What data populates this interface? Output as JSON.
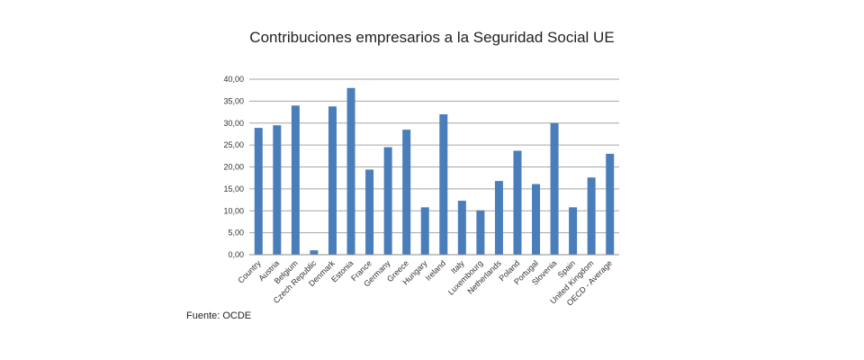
{
  "chart_data": {
    "type": "bar",
    "title": "Contribuciones empresarios a la Seguridad Social UE",
    "categories": [
      "Country",
      "Austria",
      "Belgium",
      "Czech Republic",
      "Denmark",
      "Estonia",
      "France",
      "Germany",
      "Greece",
      "Hungary",
      "Ireland",
      "Italy",
      "Luxembourg",
      "Netherlands",
      "Poland",
      "Portugal",
      "Slovenia",
      "Spain",
      "United Kingdom",
      "OECD - Average"
    ],
    "values": [
      28.9,
      29.5,
      34.0,
      1.0,
      33.8,
      38.0,
      19.4,
      24.5,
      28.5,
      10.8,
      32.0,
      12.3,
      10.1,
      16.8,
      23.7,
      16.1,
      30.0,
      10.8,
      17.6,
      23.0
    ],
    "yticks": [
      "0,00",
      "5,00",
      "10,00",
      "15,00",
      "20,00",
      "25,00",
      "30,00",
      "35,00",
      "40,00"
    ],
    "ylim": [
      0,
      40
    ],
    "xlabel": "",
    "ylabel": "",
    "grid": true,
    "bar_color": "#4a7ebb",
    "grid_color": "#a6a6a6"
  },
  "source_note": "Fuente: OCDE"
}
